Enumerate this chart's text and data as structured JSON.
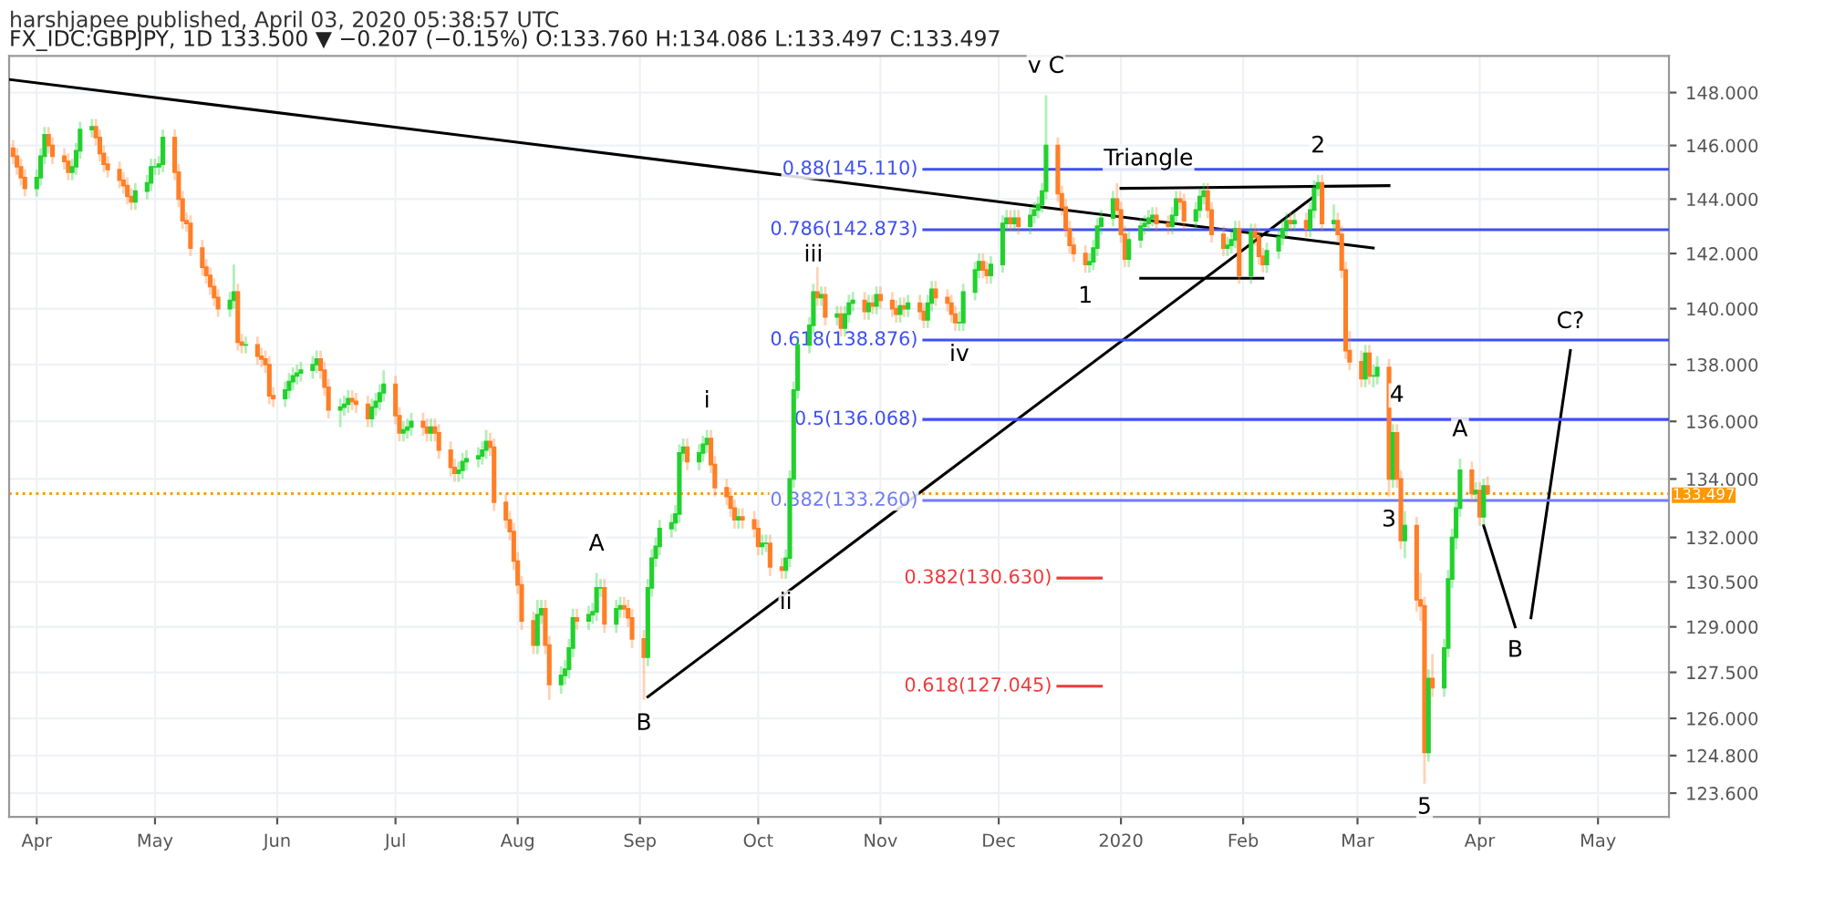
{
  "chart_data": {
    "type": "candlestick",
    "title": "harshjapee published, April 03, 2020 05:38:57 UTC",
    "subtitle": "FX_IDC:GBPJPY, 1D 133.500 ▼ −0.207 (−0.15%) O:133.760 H:134.086 L:133.497 C:133.497",
    "colors": [
      "#ff7f27",
      "#ff7f27",
      "#ff7f27",
      "#ff7f27",
      "#22d12e",
      "#22d12e",
      "#22d12e",
      "#ff7f27",
      "#ff7f27",
      "#ff7f27",
      "#ff7f27",
      "#22d12e",
      "#22d12e",
      "#22d12e",
      "#22d12e",
      "#ff7f27",
      "#ff7f27",
      "#ff7f27",
      "#ff7f27",
      "#ff7f27",
      "#ff7f27",
      "#ff7f27",
      "#ff7f27",
      "#22d12e",
      "#22d12e",
      "#22d12e",
      "#22d12e",
      "#22d12e",
      "#22d12e",
      "#ff7f27",
      "#ff7f27",
      "#ff7f27",
      "#ff7f27",
      "#ff7f27",
      "#ff7f27",
      "#ff7f27",
      "#ff7f27",
      "#ff7f27",
      "#ff7f27",
      "#22d12e",
      "#22d12e",
      "#ff7f27",
      "#ff7f27",
      "#22d12e",
      "#ff7f27",
      "#ff7f27",
      "#ff7f27",
      "#ff7f27",
      "#ff7f27",
      "#22d12e",
      "#22d12e",
      "#22d12e",
      "#22d12e",
      "#22d12e",
      "#22d12e",
      "#22d12e",
      "#ff7f27",
      "#ff7f27",
      "#ff7f27",
      "#22d12e",
      "#22d12e",
      "#22d12e",
      "#ff7f27",
      "#ff7f27",
      "#ff7f27",
      "#22d12e",
      "#22d12e",
      "#22d12e",
      "#22d12e",
      "#ff7f27",
      "#ff7f27",
      "#22d12e",
      "#22d12e",
      "#22d12e",
      "#ff7f27",
      "#ff7f27",
      "#22d12e",
      "#ff7f27",
      "#ff7f27",
      "#ff7f27",
      "#ff7f27",
      "#22d12e",
      "#22d12e",
      "#22d12e",
      "#22d12e",
      "#22d12e",
      "#22d12e",
      "#ff7f27",
      "#ff7f27",
      "#ff7f27",
      "#ff7f27",
      "#ff7f27",
      "#ff7f27",
      "#ff7f27",
      "#ff7f27",
      "#22d12e",
      "#22d12e",
      "#ff7f27",
      "#ff7f27",
      "#22d12e",
      "#22d12e",
      "#22d12e",
      "#22d12e",
      "#ff7f27",
      "#22d12e",
      "#22d12e",
      "#22d12e",
      "#22d12e",
      "#ff7f27",
      "#22d12e",
      "#22d12e",
      "#ff7f27",
      "#ff7f27",
      "#ff7f27",
      "#ff7f27",
      "#22d12e",
      "#22d12e",
      "#22d12e",
      "#22d12e",
      "#22d12e",
      "#22d12e",
      "#22d12e",
      "#22d12e",
      "#ff7f27",
      "#22d12e",
      "#22d12e",
      "#22d12e",
      "#ff7f27",
      "#ff7f27",
      "#ff7f27",
      "#ff7f27",
      "#ff7f27",
      "#22d12e",
      "#ff7f27",
      "#ff7f27",
      "#ff7f27",
      "#22d12e",
      "#22d12e",
      "#ff7f27",
      "#ff7f27",
      "#22d12e",
      "#22d12e",
      "#22d12e",
      "#22d12e",
      "#22d12e",
      "#22d12e",
      "#ff7f27",
      "#22d12e",
      "#ff7f27",
      "#22d12e",
      "#ff7f27",
      "#22d12e",
      "#22d12e",
      "#22d12e",
      "#ff7f27",
      "#22d12e",
      "#ff7f27",
      "#22d12e",
      "#ff7f27",
      "#ff7f27",
      "#ff7f27",
      "#22d12e",
      "#ff7f27",
      "#22d12e",
      "#ff7f27",
      "#ff7f27",
      "#22d12e",
      "#22d12e",
      "#ff7f27",
      "#ff7f27",
      "#ff7f27",
      "#ff7f27",
      "#22d12e",
      "#22d12e",
      "#22d12e",
      "#22d12e",
      "#ff7f27",
      "#ff7f27",
      "#22d12e",
      "#22d12e",
      "#22d12e",
      "#ff7f27",
      "#22d12e",
      "#ff7f27",
      "#22d12e",
      "#22d12e",
      "#22d12e",
      "#22d12e",
      "#22d12e",
      "#ff7f27",
      "#ff7f27",
      "#ff7f27",
      "#ff7f27",
      "#ff7f27",
      "#ff7f27",
      "#22d12e",
      "#22d12e",
      "#22d12e",
      "#22d12e",
      "#22d12e",
      "#ff7f27",
      "#ff7f27",
      "#ff7f27",
      "#22d12e",
      "#22d12e",
      "#22d12e",
      "#22d12e",
      "#22d12e",
      "#ff7f27",
      "#ff7f27",
      "#22d12e",
      "#22d12e",
      "#ff7f27",
      "#ff7f27",
      "#22d12e",
      "#22d12e",
      "#22d12e",
      "#ff7f27",
      "#ff7f27",
      "#ff7f27",
      "#22d12e",
      "#22d12e",
      "#22d12e",
      "#ff7f27",
      "#22d12e",
      "#ff7f27",
      "#ff7f27",
      "#ff7f27",
      "#22d12e",
      "#22d12e",
      "#22d12e",
      "#22d12e",
      "#ff7f27",
      "#22d12e",
      "#ff7f27",
      "#22d12e",
      "#22d12e",
      "#22d12e",
      "#ff7f27",
      "#22d12e",
      "#ff7f27",
      "#ff7f27",
      "#ff7f27",
      "#ff7f27",
      "#ff7f27",
      "#22d12e",
      "#ff7f27",
      "#22d12e",
      "#22d12e",
      "#ff7f27",
      "#22d12e",
      "#ff7f27",
      "#ff7f27",
      "#22d12e",
      "#ff7f27",
      "#ff7f27",
      "#ff7f27",
      "#22d12e",
      "#ff7f27",
      "#22d12e",
      "#22d12e",
      "#22d12e",
      "#22d12e",
      "#22d12e",
      "#ff7f27",
      "#22d12e",
      "#ff7f27",
      "#22d12e",
      "#ff7f27"
    ],
    "x": [
      "2019-03-26",
      "2019-03-27",
      "2019-03-28",
      "2019-03-29",
      "2019-04-01",
      "2019-04-02",
      "2019-04-03",
      "2019-04-04",
      "2019-04-05",
      "2019-04-08",
      "2019-04-09",
      "2019-04-10",
      "2019-04-11",
      "2019-04-12",
      "2019-04-15",
      "2019-04-16",
      "2019-04-17",
      "2019-04-18",
      "2019-04-19",
      "2019-04-22",
      "2019-04-23",
      "2019-04-24",
      "2019-04-25",
      "2019-04-26",
      "2019-04-29",
      "2019-04-30",
      "2019-05-01",
      "2019-05-02",
      "2019-05-03",
      "2019-05-06",
      "2019-05-07",
      "2019-05-08",
      "2019-05-09",
      "2019-05-10",
      "2019-05-13",
      "2019-05-14",
      "2019-05-15",
      "2019-05-16",
      "2019-05-17",
      "2019-05-20",
      "2019-05-21",
      "2019-05-22",
      "2019-05-23",
      "2019-05-24",
      "2019-05-27",
      "2019-05-28",
      "2019-05-29",
      "2019-05-30",
      "2019-05-31",
      "2019-06-03",
      "2019-06-04",
      "2019-06-05",
      "2019-06-06",
      "2019-06-07",
      "2019-06-10",
      "2019-06-11",
      "2019-06-12",
      "2019-06-13",
      "2019-06-14",
      "2019-06-17",
      "2019-06-18",
      "2019-06-19",
      "2019-06-20",
      "2019-06-21",
      "2019-06-24",
      "2019-06-25",
      "2019-06-26",
      "2019-06-27",
      "2019-06-28",
      "2019-07-01",
      "2019-07-02",
      "2019-07-03",
      "2019-07-04",
      "2019-07-05",
      "2019-07-08",
      "2019-07-09",
      "2019-07-10",
      "2019-07-11",
      "2019-07-12",
      "2019-07-15",
      "2019-07-16",
      "2019-07-17",
      "2019-07-18",
      "2019-07-19",
      "2019-07-22",
      "2019-07-23",
      "2019-07-24",
      "2019-07-25",
      "2019-07-26",
      "2019-07-29",
      "2019-07-30",
      "2019-07-31",
      "2019-08-01",
      "2019-08-02",
      "2019-08-05",
      "2019-08-06",
      "2019-08-07",
      "2019-08-08",
      "2019-08-09",
      "2019-08-12",
      "2019-08-13",
      "2019-08-14",
      "2019-08-15",
      "2019-08-16",
      "2019-08-19",
      "2019-08-20",
      "2019-08-21",
      "2019-08-22",
      "2019-08-23",
      "2019-08-26",
      "2019-08-27",
      "2019-08-28",
      "2019-08-29",
      "2019-08-30",
      "2019-09-02",
      "2019-09-03",
      "2019-09-04",
      "2019-09-05",
      "2019-09-06",
      "2019-09-09",
      "2019-09-10",
      "2019-09-11",
      "2019-09-12",
      "2019-09-13",
      "2019-09-16",
      "2019-09-17",
      "2019-09-18",
      "2019-09-19",
      "2019-09-20",
      "2019-09-23",
      "2019-09-24",
      "2019-09-25",
      "2019-09-26",
      "2019-09-27",
      "2019-09-30",
      "2019-10-01",
      "2019-10-02",
      "2019-10-03",
      "2019-10-04",
      "2019-10-07",
      "2019-10-08",
      "2019-10-09",
      "2019-10-10",
      "2019-10-11",
      "2019-10-14",
      "2019-10-15",
      "2019-10-16",
      "2019-10-17",
      "2019-10-18",
      "2019-10-21",
      "2019-10-22",
      "2019-10-23",
      "2019-10-24",
      "2019-10-25",
      "2019-10-28",
      "2019-10-29",
      "2019-10-30",
      "2019-10-31",
      "2019-11-01",
      "2019-11-04",
      "2019-11-05",
      "2019-11-06",
      "2019-11-07",
      "2019-11-08",
      "2019-11-11",
      "2019-11-12",
      "2019-11-13",
      "2019-11-14",
      "2019-11-15",
      "2019-11-18",
      "2019-11-19",
      "2019-11-20",
      "2019-11-21",
      "2019-11-22",
      "2019-11-25",
      "2019-11-26",
      "2019-11-27",
      "2019-11-28",
      "2019-11-29",
      "2019-12-02",
      "2019-12-03",
      "2019-12-04",
      "2019-12-05",
      "2019-12-06",
      "2019-12-09",
      "2019-12-10",
      "2019-12-11",
      "2019-12-12",
      "2019-12-13",
      "2019-12-16",
      "2019-12-17",
      "2019-12-18",
      "2019-12-19",
      "2019-12-20",
      "2019-12-23",
      "2019-12-24",
      "2019-12-25",
      "2019-12-26",
      "2019-12-27",
      "2019-12-30",
      "2019-12-31",
      "2020-01-01",
      "2020-01-02",
      "2020-01-03",
      "2020-01-06",
      "2020-01-07",
      "2020-01-08",
      "2020-01-09",
      "2020-01-10",
      "2020-01-13",
      "2020-01-14",
      "2020-01-15",
      "2020-01-16",
      "2020-01-17",
      "2020-01-20",
      "2020-01-21",
      "2020-01-22",
      "2020-01-23",
      "2020-01-24",
      "2020-01-27",
      "2020-01-28",
      "2020-01-29",
      "2020-01-30",
      "2020-01-31",
      "2020-02-03",
      "2020-02-04",
      "2020-02-05",
      "2020-02-06",
      "2020-02-07",
      "2020-02-10",
      "2020-02-11",
      "2020-02-12",
      "2020-02-13",
      "2020-02-14",
      "2020-02-17",
      "2020-02-18",
      "2020-02-19",
      "2020-02-20",
      "2020-02-21",
      "2020-02-24",
      "2020-02-25",
      "2020-02-26",
      "2020-02-27",
      "2020-02-28",
      "2020-03-02",
      "2020-03-03",
      "2020-03-04",
      "2020-03-05",
      "2020-03-06",
      "2020-03-09",
      "2020-03-10",
      "2020-03-11",
      "2020-03-12",
      "2020-03-13",
      "2020-03-16",
      "2020-03-17",
      "2020-03-18",
      "2020-03-19",
      "2020-03-20",
      "2020-03-23",
      "2020-03-24",
      "2020-03-25",
      "2020-03-26",
      "2020-03-27",
      "2020-03-30",
      "2020-03-31",
      "2020-04-01",
      "2020-04-02",
      "2020-04-03"
    ],
    "ohlc": [
      [
        145.9,
        146.2,
        145.3,
        145.6
      ],
      [
        145.6,
        145.9,
        144.9,
        145.2
      ],
      [
        145.2,
        145.5,
        144.5,
        144.8
      ],
      [
        144.8,
        145.1,
        144.1,
        144.4
      ],
      [
        144.4,
        145.1,
        144.1,
        144.8
      ],
      [
        144.8,
        145.9,
        144.5,
        145.6
      ],
      [
        145.6,
        146.7,
        145.3,
        146.4
      ],
      [
        146.4,
        146.7,
        145.7,
        146.0
      ],
      [
        146.0,
        146.3,
        145.3,
        145.6
      ],
      [
        145.6,
        145.9,
        145.1,
        145.4
      ],
      [
        145.4,
        145.7,
        144.7,
        145.0
      ],
      [
        145.0,
        145.5,
        144.7,
        145.2
      ],
      [
        145.2,
        146.1,
        144.9,
        145.8
      ],
      [
        145.8,
        146.9,
        145.5,
        146.6
      ],
      [
        146.6,
        147.0,
        146.3,
        146.7
      ],
      [
        146.7,
        147.0,
        146.0,
        146.3
      ],
      [
        146.3,
        146.6,
        145.4,
        145.7
      ],
      [
        145.7,
        146.0,
        145.0,
        145.3
      ],
      [
        145.3,
        145.6,
        144.8,
        145.1
      ],
      [
        145.1,
        145.4,
        144.4,
        144.7
      ],
      [
        144.7,
        145.0,
        144.2,
        144.5
      ],
      [
        144.5,
        144.8,
        143.8,
        144.1
      ],
      [
        144.1,
        144.4,
        143.6,
        143.9
      ],
      [
        143.9,
        144.6,
        143.6,
        144.3
      ],
      [
        144.3,
        144.9,
        144.0,
        144.6
      ],
      [
        144.6,
        145.5,
        144.3,
        145.2
      ],
      [
        145.2,
        145.5,
        144.9,
        145.2
      ],
      [
        145.2,
        145.6,
        144.9,
        145.3
      ],
      [
        145.3,
        146.6,
        145.0,
        146.3
      ],
      [
        146.3,
        146.6,
        144.7,
        145.0
      ],
      [
        145.0,
        145.3,
        143.7,
        144.0
      ],
      [
        144.0,
        144.3,
        142.9,
        143.2
      ],
      [
        143.2,
        143.5,
        142.8,
        143.1
      ],
      [
        143.1,
        143.4,
        141.9,
        142.2
      ],
      [
        142.2,
        142.5,
        141.2,
        141.5
      ],
      [
        141.5,
        141.8,
        140.9,
        141.2
      ],
      [
        141.2,
        141.5,
        140.5,
        140.8
      ],
      [
        140.8,
        141.1,
        140.1,
        140.4
      ],
      [
        140.4,
        140.7,
        139.7,
        140.0
      ],
      [
        140.0,
        140.6,
        139.7,
        140.3
      ],
      [
        140.3,
        141.6,
        140.0,
        140.6
      ],
      [
        140.6,
        140.9,
        138.5,
        138.8
      ],
      [
        138.8,
        139.1,
        138.4,
        138.7
      ],
      [
        138.7,
        139.0,
        138.4,
        138.7
      ],
      [
        138.7,
        139.0,
        138.0,
        138.3
      ],
      [
        138.3,
        138.6,
        137.9,
        138.2
      ],
      [
        138.2,
        138.5,
        137.7,
        138.0
      ],
      [
        138.0,
        138.3,
        136.6,
        136.9
      ],
      [
        136.9,
        137.2,
        136.5,
        136.8
      ],
      [
        136.8,
        137.4,
        136.5,
        137.1
      ],
      [
        137.1,
        137.7,
        136.8,
        137.4
      ],
      [
        137.4,
        137.9,
        137.1,
        137.6
      ],
      [
        137.6,
        138.0,
        137.3,
        137.7
      ],
      [
        137.7,
        138.1,
        137.4,
        137.8
      ],
      [
        137.8,
        138.3,
        137.5,
        138.0
      ],
      [
        138.0,
        138.5,
        137.7,
        138.2
      ],
      [
        138.2,
        138.5,
        137.5,
        137.8
      ],
      [
        137.8,
        138.1,
        136.9,
        137.2
      ],
      [
        137.2,
        137.5,
        136.1,
        136.4
      ],
      [
        136.4,
        136.8,
        135.8,
        136.5
      ],
      [
        136.5,
        136.9,
        136.2,
        136.6
      ],
      [
        136.6,
        137.1,
        136.3,
        136.8
      ],
      [
        136.8,
        137.1,
        136.4,
        136.7
      ],
      [
        136.7,
        137.0,
        136.3,
        136.6
      ],
      [
        136.6,
        136.9,
        135.8,
        136.1
      ],
      [
        136.1,
        136.8,
        135.8,
        136.5
      ],
      [
        136.5,
        137.0,
        136.2,
        136.7
      ],
      [
        136.7,
        137.3,
        136.4,
        137.0
      ],
      [
        137.0,
        137.8,
        136.7,
        137.3
      ],
      [
        137.3,
        137.6,
        135.9,
        136.2
      ],
      [
        136.2,
        136.5,
        135.3,
        135.6
      ],
      [
        135.6,
        136.0,
        135.3,
        135.7
      ],
      [
        135.7,
        136.1,
        135.4,
        135.8
      ],
      [
        135.8,
        136.3,
        135.5,
        136.0
      ],
      [
        136.0,
        136.3,
        135.5,
        135.8
      ],
      [
        135.8,
        136.1,
        135.3,
        135.6
      ],
      [
        135.6,
        136.1,
        135.3,
        135.8
      ],
      [
        135.8,
        136.1,
        135.3,
        135.6
      ],
      [
        135.6,
        135.9,
        134.7,
        135.0
      ],
      [
        135.0,
        135.3,
        134.1,
        134.4
      ],
      [
        134.4,
        134.7,
        133.9,
        134.2
      ],
      [
        134.2,
        134.6,
        133.9,
        134.3
      ],
      [
        134.3,
        134.9,
        134.0,
        134.6
      ],
      [
        134.6,
        135.0,
        134.3,
        134.7
      ],
      [
        134.7,
        135.1,
        134.4,
        134.8
      ],
      [
        134.8,
        135.3,
        134.5,
        135.0
      ],
      [
        135.0,
        135.7,
        134.7,
        135.3
      ],
      [
        135.3,
        135.6,
        134.8,
        135.1
      ],
      [
        135.1,
        135.4,
        132.9,
        133.2
      ],
      [
        133.2,
        133.5,
        132.3,
        132.6
      ],
      [
        132.6,
        132.9,
        131.9,
        132.2
      ],
      [
        132.2,
        132.5,
        130.9,
        131.2
      ],
      [
        131.2,
        131.5,
        130.1,
        130.4
      ],
      [
        130.4,
        130.7,
        128.9,
        129.2
      ],
      [
        129.2,
        129.5,
        128.1,
        128.4
      ],
      [
        128.4,
        129.9,
        128.1,
        129.4
      ],
      [
        129.4,
        129.9,
        129.1,
        129.6
      ],
      [
        129.6,
        129.9,
        128.1,
        128.4
      ],
      [
        128.4,
        128.7,
        126.6,
        127.1
      ],
      [
        127.1,
        127.7,
        126.8,
        127.4
      ],
      [
        127.4,
        127.9,
        127.1,
        127.6
      ],
      [
        127.6,
        128.6,
        127.3,
        128.3
      ],
      [
        128.3,
        129.6,
        128.0,
        129.3
      ],
      [
        129.3,
        129.6,
        128.9,
        129.2
      ],
      [
        129.2,
        129.7,
        128.9,
        129.4
      ],
      [
        129.4,
        129.8,
        129.1,
        129.5
      ],
      [
        129.5,
        130.8,
        129.2,
        130.3
      ],
      [
        130.3,
        130.6,
        130.0,
        130.3
      ],
      [
        130.3,
        130.6,
        128.8,
        129.1
      ],
      [
        129.1,
        129.9,
        128.8,
        129.6
      ],
      [
        129.6,
        130.0,
        129.3,
        129.7
      ],
      [
        129.7,
        130.0,
        129.3,
        129.6
      ],
      [
        129.6,
        129.9,
        129.0,
        129.3
      ],
      [
        129.3,
        129.6,
        128.3,
        128.6
      ],
      [
        128.6,
        128.9,
        126.6,
        128.0
      ],
      [
        128.0,
        130.6,
        127.7,
        130.3
      ],
      [
        130.3,
        131.6,
        130.0,
        131.3
      ],
      [
        131.3,
        132.0,
        131.0,
        131.7
      ],
      [
        131.7,
        132.6,
        131.4,
        132.3
      ],
      [
        132.3,
        132.8,
        132.0,
        132.5
      ],
      [
        132.5,
        133.1,
        132.2,
        132.8
      ],
      [
        132.8,
        135.2,
        132.5,
        134.9
      ],
      [
        134.9,
        135.4,
        134.6,
        135.1
      ],
      [
        135.1,
        135.4,
        134.3,
        134.6
      ],
      [
        134.6,
        135.2,
        134.3,
        134.9
      ],
      [
        134.9,
        135.5,
        134.6,
        135.2
      ],
      [
        135.2,
        135.7,
        134.9,
        135.4
      ],
      [
        135.4,
        135.7,
        134.2,
        134.5
      ],
      [
        134.5,
        134.8,
        133.4,
        133.7
      ],
      [
        133.7,
        134.0,
        133.1,
        133.4
      ],
      [
        133.4,
        133.7,
        132.7,
        133.0
      ],
      [
        133.0,
        133.3,
        132.3,
        132.6
      ],
      [
        132.6,
        133.0,
        132.3,
        132.7
      ],
      [
        132.7,
        133.0,
        132.3,
        132.6
      ],
      [
        132.6,
        132.9,
        132.0,
        132.3
      ],
      [
        132.3,
        132.6,
        131.4,
        131.7
      ],
      [
        131.7,
        132.1,
        131.4,
        131.8
      ],
      [
        131.8,
        132.1,
        131.5,
        131.8
      ],
      [
        131.8,
        132.1,
        130.7,
        131.0
      ],
      [
        131.0,
        131.3,
        130.6,
        130.9
      ],
      [
        130.9,
        131.6,
        130.6,
        131.3
      ],
      [
        131.3,
        134.3,
        131.0,
        134.0
      ],
      [
        134.0,
        137.4,
        133.7,
        137.1
      ],
      [
        137.1,
        139.0,
        136.8,
        138.7
      ],
      [
        138.7,
        139.7,
        138.4,
        139.4
      ],
      [
        139.4,
        140.9,
        139.1,
        140.6
      ],
      [
        140.6,
        141.6,
        140.1,
        140.4
      ],
      [
        140.4,
        140.8,
        140.1,
        140.5
      ],
      [
        140.5,
        140.8,
        139.4,
        139.7
      ],
      [
        139.7,
        140.1,
        139.4,
        139.8
      ],
      [
        139.8,
        140.1,
        139.0,
        139.3
      ],
      [
        139.3,
        140.1,
        139.0,
        139.8
      ],
      [
        139.8,
        140.5,
        139.5,
        140.2
      ],
      [
        140.2,
        140.6,
        139.9,
        140.3
      ],
      [
        140.3,
        140.6,
        139.6,
        139.9
      ],
      [
        139.9,
        140.5,
        139.6,
        140.2
      ],
      [
        140.2,
        140.5,
        139.8,
        140.1
      ],
      [
        140.1,
        140.8,
        139.8,
        140.5
      ],
      [
        140.5,
        140.8,
        140.0,
        140.3
      ],
      [
        140.3,
        140.6,
        139.7,
        140.0
      ],
      [
        140.0,
        140.3,
        139.5,
        139.8
      ],
      [
        139.8,
        140.4,
        139.5,
        140.1
      ],
      [
        140.1,
        140.4,
        139.7,
        140.0
      ],
      [
        140.0,
        140.5,
        139.7,
        140.2
      ],
      [
        140.2,
        140.5,
        139.6,
        139.9
      ],
      [
        139.9,
        140.2,
        139.3,
        139.6
      ],
      [
        139.6,
        140.5,
        139.3,
        140.2
      ],
      [
        140.2,
        141.0,
        139.9,
        140.7
      ],
      [
        140.7,
        141.0,
        140.1,
        140.4
      ],
      [
        140.4,
        140.7,
        139.9,
        140.2
      ],
      [
        140.2,
        140.5,
        139.5,
        139.8
      ],
      [
        139.8,
        140.1,
        139.2,
        139.5
      ],
      [
        139.5,
        139.9,
        139.2,
        139.5
      ],
      [
        139.5,
        140.9,
        139.2,
        140.6
      ],
      [
        140.6,
        141.7,
        140.3,
        141.4
      ],
      [
        141.4,
        142.0,
        141.1,
        141.7
      ],
      [
        141.7,
        142.0,
        141.1,
        141.4
      ],
      [
        141.4,
        141.7,
        140.9,
        141.2
      ],
      [
        141.2,
        141.9,
        140.9,
        141.6
      ],
      [
        141.6,
        143.4,
        141.3,
        143.1
      ],
      [
        143.1,
        143.6,
        142.8,
        143.3
      ],
      [
        143.3,
        143.6,
        142.8,
        143.1
      ],
      [
        143.1,
        143.6,
        142.8,
        143.3
      ],
      [
        143.3,
        143.6,
        142.7,
        143.0
      ],
      [
        143.0,
        143.7,
        142.7,
        143.4
      ],
      [
        143.4,
        143.9,
        143.1,
        143.6
      ],
      [
        143.6,
        144.1,
        143.3,
        143.8
      ],
      [
        143.8,
        144.6,
        143.5,
        144.3
      ],
      [
        144.3,
        147.9,
        144.0,
        146.0
      ],
      [
        146.0,
        146.3,
        143.9,
        144.2
      ],
      [
        144.2,
        144.5,
        143.4,
        143.7
      ],
      [
        143.7,
        144.0,
        142.6,
        142.9
      ],
      [
        142.9,
        143.2,
        142.0,
        142.3
      ],
      [
        142.3,
        142.6,
        141.7,
        142.0
      ],
      [
        142.0,
        142.3,
        141.3,
        141.6
      ],
      [
        141.6,
        142.0,
        141.3,
        141.7
      ],
      [
        141.7,
        142.5,
        141.4,
        142.2
      ],
      [
        142.2,
        143.3,
        141.9,
        143.0
      ],
      [
        143.0,
        143.6,
        142.7,
        143.3
      ],
      [
        143.3,
        144.3,
        143.0,
        144.0
      ],
      [
        144.0,
        144.6,
        143.3,
        143.6
      ],
      [
        143.6,
        143.9,
        142.4,
        142.7
      ],
      [
        142.7,
        143.0,
        141.5,
        141.8
      ],
      [
        141.8,
        142.8,
        141.5,
        142.5
      ],
      [
        142.5,
        143.3,
        142.2,
        143.0
      ],
      [
        143.0,
        143.4,
        142.7,
        143.1
      ],
      [
        143.1,
        143.6,
        142.8,
        143.3
      ],
      [
        143.3,
        143.7,
        143.0,
        143.4
      ],
      [
        143.4,
        143.7,
        142.8,
        143.1
      ],
      [
        143.1,
        143.4,
        142.7,
        143.0
      ],
      [
        143.0,
        143.7,
        142.7,
        143.4
      ],
      [
        143.4,
        144.3,
        143.1,
        144.0
      ],
      [
        144.0,
        144.3,
        143.6,
        143.9
      ],
      [
        143.9,
        144.2,
        142.9,
        143.2
      ],
      [
        143.2,
        143.9,
        142.9,
        143.6
      ],
      [
        143.6,
        144.4,
        143.3,
        144.1
      ],
      [
        144.1,
        144.6,
        143.8,
        144.3
      ],
      [
        144.3,
        144.6,
        143.3,
        143.6
      ],
      [
        143.6,
        143.9,
        142.4,
        142.7
      ],
      [
        142.7,
        143.0,
        141.9,
        142.2
      ],
      [
        142.2,
        142.6,
        141.9,
        142.3
      ],
      [
        142.3,
        142.8,
        142.0,
        142.5
      ],
      [
        142.5,
        143.2,
        142.2,
        142.9
      ],
      [
        142.9,
        143.2,
        140.9,
        141.2
      ],
      [
        141.2,
        143.1,
        140.9,
        142.8
      ],
      [
        142.8,
        143.1,
        142.3,
        142.6
      ],
      [
        142.6,
        142.9,
        141.6,
        141.9
      ],
      [
        141.9,
        142.2,
        141.3,
        141.6
      ],
      [
        141.6,
        142.4,
        141.3,
        142.1
      ],
      [
        142.1,
        142.9,
        141.8,
        142.6
      ],
      [
        142.6,
        143.2,
        142.3,
        142.9
      ],
      [
        142.9,
        143.5,
        142.6,
        143.2
      ],
      [
        143.2,
        143.5,
        142.8,
        143.1
      ],
      [
        143.1,
        143.5,
        142.8,
        143.2
      ],
      [
        143.2,
        143.5,
        142.6,
        142.9
      ],
      [
        142.9,
        143.9,
        142.6,
        143.6
      ],
      [
        143.6,
        144.7,
        143.3,
        144.4
      ],
      [
        144.4,
        144.9,
        144.1,
        144.6
      ],
      [
        144.6,
        144.9,
        142.8,
        143.1
      ],
      [
        143.1,
        143.8,
        142.8,
        143.2
      ],
      [
        143.2,
        143.5,
        142.4,
        142.7
      ],
      [
        142.7,
        143.0,
        141.1,
        141.4
      ],
      [
        141.4,
        141.7,
        138.2,
        138.5
      ],
      [
        138.5,
        139.2,
        137.8,
        138.1
      ],
      [
        138.1,
        138.5,
        137.2,
        137.5
      ],
      [
        137.5,
        138.7,
        137.2,
        138.4
      ],
      [
        138.4,
        138.7,
        137.3,
        137.6
      ],
      [
        137.6,
        138.0,
        137.2,
        137.6
      ],
      [
        137.6,
        138.3,
        137.3,
        137.9
      ],
      [
        137.9,
        138.2,
        133.4,
        134.0
      ],
      [
        134.0,
        135.9,
        133.7,
        135.6
      ],
      [
        135.6,
        135.9,
        133.7,
        134.0
      ],
      [
        134.0,
        134.3,
        131.6,
        131.9
      ],
      [
        131.9,
        132.9,
        131.3,
        132.4
      ],
      [
        132.4,
        132.7,
        129.5,
        129.9
      ],
      [
        129.9,
        130.8,
        129.2,
        129.7
      ],
      [
        129.7,
        130.0,
        123.9,
        124.9
      ],
      [
        124.9,
        127.6,
        124.6,
        127.3
      ],
      [
        127.3,
        128.1,
        126.7,
        127.0
      ],
      [
        127.0,
        128.6,
        126.7,
        128.3
      ],
      [
        128.3,
        130.9,
        128.0,
        130.6
      ],
      [
        130.6,
        132.3,
        130.3,
        132.0
      ],
      [
        132.0,
        133.3,
        131.6,
        133.0
      ],
      [
        133.0,
        134.7,
        132.7,
        134.3
      ],
      [
        134.3,
        134.6,
        133.2,
        133.5
      ],
      [
        133.5,
        133.9,
        133.2,
        133.6
      ],
      [
        133.6,
        133.9,
        132.4,
        132.7
      ],
      [
        132.7,
        134.0,
        132.4,
        133.76
      ],
      [
        133.76,
        134.086,
        133.497,
        133.497
      ]
    ],
    "series": [
      {
        "type": "line",
        "color": "#000000",
        "x": [
          "2019-03-25",
          "2020-03-05"
        ],
        "values": [
          148.5,
          142.2
        ]
      },
      {
        "type": "line",
        "color": "#000000",
        "x": [
          "2019-09-03",
          "2020-02-19"
        ],
        "values": [
          126.7,
          144.1
        ]
      },
      {
        "type": "line",
        "color": "#000000",
        "x": [
          "2020-01-01",
          "2020-03-09"
        ],
        "values": [
          144.4,
          144.5
        ]
      },
      {
        "type": "line",
        "color": "#000000",
        "x": [
          "2020-01-06",
          "2020-02-06"
        ],
        "values": [
          141.1,
          141.1
        ]
      },
      {
        "type": "line",
        "color": "#000000",
        "x": [
          "2020-04-02",
          "2020-04-10",
          null,
          "2020-04-14",
          "2020-04-24"
        ],
        "values": [
          132.4,
          129.0,
          null,
          129.3,
          138.5
        ]
      },
      {
        "type": "line",
        "name": "0.88(145.110)",
        "color": "#3f4ff2",
        "x": [
          "2019-11-12",
          "2020-05-19"
        ],
        "values": [
          145.11,
          145.11
        ]
      },
      {
        "type": "line",
        "name": "0.786(142.873)",
        "color": "#3f4ff2",
        "x": [
          "2019-11-12",
          "2020-05-19"
        ],
        "values": [
          142.873,
          142.873
        ]
      },
      {
        "type": "line",
        "name": "0.618(138.876)",
        "color": "#3f4ff2",
        "x": [
          "2019-11-12",
          "2020-05-19"
        ],
        "values": [
          138.876,
          138.876
        ]
      },
      {
        "type": "line",
        "name": "0.5(136.068)",
        "color": "#3f4ff2",
        "x": [
          "2019-11-12",
          "2020-05-19"
        ],
        "values": [
          136.068,
          136.068
        ]
      },
      {
        "type": "line",
        "name": "0.382(133.260)",
        "color": "#6f7cf5",
        "x": [
          "2019-11-12",
          "2020-05-19"
        ],
        "values": [
          133.26,
          133.26
        ]
      },
      {
        "type": "line",
        "name": "0.382(130.630)",
        "color": "#f03a3a",
        "x": [
          "2019-12-16",
          "2019-12-27"
        ],
        "values": [
          130.63,
          130.63
        ]
      },
      {
        "type": "line",
        "name": "0.618(127.045)",
        "color": "#f03a3a",
        "x": [
          "2019-12-16",
          "2019-12-27"
        ],
        "values": [
          127.045,
          127.045
        ]
      }
    ],
    "ref_lines": [
      {
        "axis": "y",
        "value": 133.497,
        "label": "133.497",
        "color": "#ff9800",
        "line_style": "dotted"
      }
    ],
    "annotations": [
      {
        "text": "v C",
        "x": "2019-12-13",
        "y": 147.9
      },
      {
        "text": "Triangle",
        "x": "2020-01-08",
        "y": 144.42
      },
      {
        "text": "2",
        "x": "2020-02-20",
        "y": 144.9
      },
      {
        "text": "1",
        "x": "2019-12-23",
        "y": 141.3
      },
      {
        "text": "iv",
        "x": "2019-11-21",
        "y": 139.2
      },
      {
        "text": "iii",
        "x": "2019-10-15",
        "y": 140.9
      },
      {
        "text": "ii",
        "x": "2019-10-08",
        "y": 130.6
      },
      {
        "text": "i",
        "x": "2019-09-18",
        "y": 135.7
      },
      {
        "text": "A",
        "x": "2019-08-21",
        "y": 130.8
      },
      {
        "text": "B",
        "x": "2019-09-02",
        "y": 126.6
      },
      {
        "text": "3",
        "x": "2020-03-09",
        "y": 133.4
      },
      {
        "text": "4",
        "x": "2020-03-11",
        "y": 135.9
      },
      {
        "text": "5",
        "x": "2020-03-18",
        "y": 123.9
      },
      {
        "text": "A",
        "x": "2020-03-27",
        "y": 134.7
      },
      {
        "text": "B",
        "x": "2020-04-10",
        "y": 129.0
      },
      {
        "text": "C?",
        "x": "2020-04-24",
        "y": 138.5
      }
    ],
    "log": true,
    "grid": true,
    "xlim": [
      "2019-03-25",
      "2020-05-19"
    ],
    "xticks": [
      {
        "value": "2019-04-01",
        "label": "Apr"
      },
      {
        "value": "2019-05-01",
        "label": "May"
      },
      {
        "value": "2019-06-01",
        "label": "Jun"
      },
      {
        "value": "2019-07-01",
        "label": "Jul"
      },
      {
        "value": "2019-08-01",
        "label": "Aug"
      },
      {
        "value": "2019-09-01",
        "label": "Sep"
      },
      {
        "value": "2019-10-01",
        "label": "Oct"
      },
      {
        "value": "2019-11-01",
        "label": "Nov"
      },
      {
        "value": "2019-12-01",
        "label": "Dec"
      },
      {
        "value": "2020-01-01",
        "label": "2020"
      },
      {
        "value": "2020-02-01",
        "label": "Feb"
      },
      {
        "value": "2020-03-01",
        "label": "Mar"
      },
      {
        "value": "2020-04-01",
        "label": "Apr"
      },
      {
        "value": "2020-05-01",
        "label": "May"
      }
    ],
    "ylim": [
      122.85,
      149.4
    ],
    "yticks": [
      {
        "value": 123.6,
        "label": "123.600"
      },
      {
        "value": 124.8,
        "label": "124.800"
      },
      {
        "value": 126,
        "label": "126.000"
      },
      {
        "value": 127.5,
        "label": "127.500"
      },
      {
        "value": 129,
        "label": "129.000"
      },
      {
        "value": 130.5,
        "label": "130.500"
      },
      {
        "value": 132,
        "label": "132.000"
      },
      {
        "value": 134,
        "label": "134.000"
      },
      {
        "value": 136,
        "label": "136.000"
      },
      {
        "value": 138,
        "label": "138.000"
      },
      {
        "value": 140,
        "label": "140.000"
      },
      {
        "value": 142,
        "label": "142.000"
      },
      {
        "value": 144,
        "label": "144.000"
      },
      {
        "value": 146,
        "label": "146.000"
      },
      {
        "value": 148,
        "label": "148.000"
      }
    ]
  }
}
